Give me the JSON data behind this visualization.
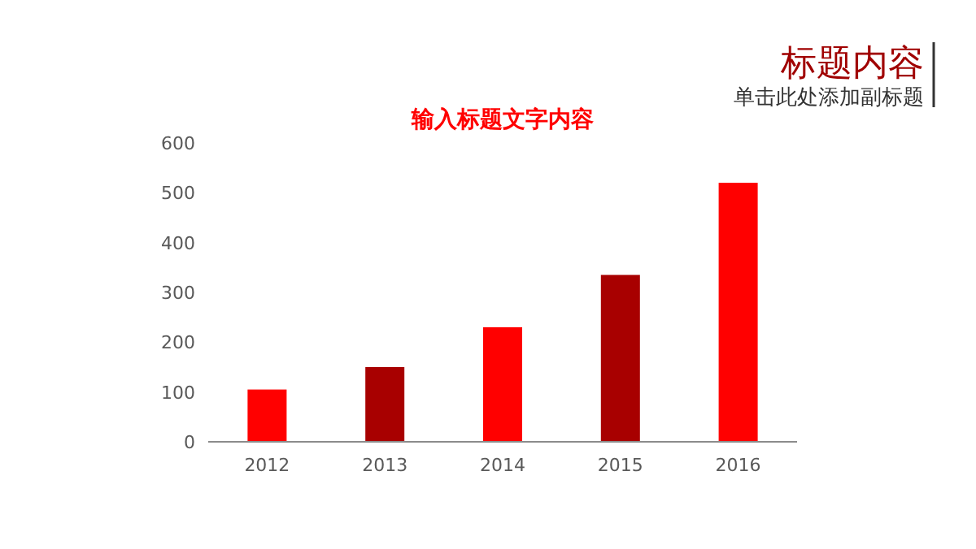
{
  "chart_data": {
    "type": "bar",
    "title": "输入标题文字内容",
    "annotations": [
      "标题内容",
      "单击此处添加副标题"
    ],
    "categories": [
      "2012",
      "2013",
      "2014",
      "2015",
      "2016"
    ],
    "values": [
      105,
      150,
      230,
      335,
      520
    ],
    "colors": [
      "#ff0000",
      "#a80000",
      "#ff0000",
      "#a80000",
      "#ff0000"
    ],
    "ylim": [
      0,
      600
    ],
    "yticks": [
      0,
      100,
      200,
      300,
      400,
      500,
      600
    ],
    "grid": false
  }
}
